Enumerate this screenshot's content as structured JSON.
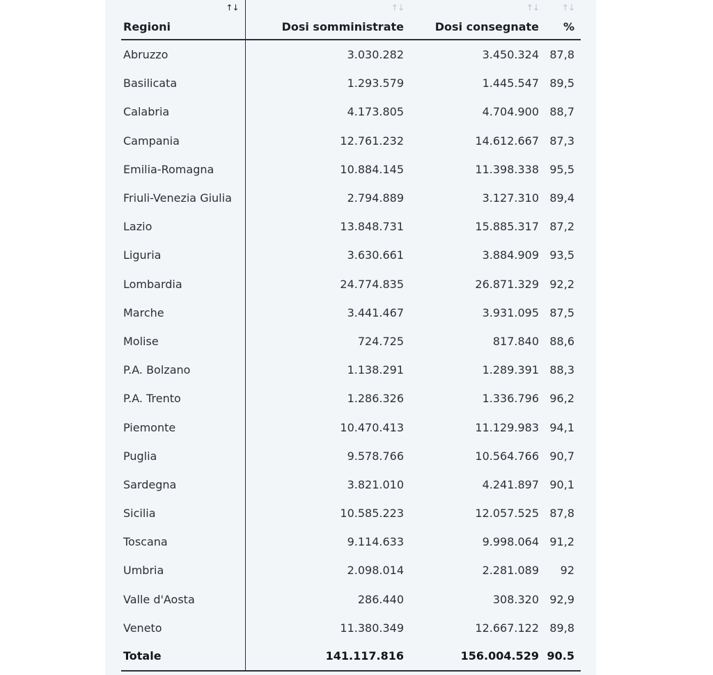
{
  "table": {
    "headers": [
      "Regioni",
      "Dosi somministrate",
      "Dosi consegnate",
      "%"
    ],
    "sort_glyph": "↑↓",
    "rows": [
      [
        "Abruzzo",
        "3.030.282",
        "3.450.324",
        "87,8"
      ],
      [
        "Basilicata",
        "1.293.579",
        "1.445.547",
        "89,5"
      ],
      [
        "Calabria",
        "4.173.805",
        "4.704.900",
        "88,7"
      ],
      [
        "Campania",
        "12.761.232",
        "14.612.667",
        "87,3"
      ],
      [
        "Emilia-Romagna",
        "10.884.145",
        "11.398.338",
        "95,5"
      ],
      [
        "Friuli-Venezia Giulia",
        "2.794.889",
        "3.127.310",
        "89,4"
      ],
      [
        "Lazio",
        "13.848.731",
        "15.885.317",
        "87,2"
      ],
      [
        "Liguria",
        "3.630.661",
        "3.884.909",
        "93,5"
      ],
      [
        "Lombardia",
        "24.774.835",
        "26.871.329",
        "92,2"
      ],
      [
        "Marche",
        "3.441.467",
        "3.931.095",
        "87,5"
      ],
      [
        "Molise",
        "724.725",
        "817.840",
        "88,6"
      ],
      [
        "P.A. Bolzano",
        "1.138.291",
        "1.289.391",
        "88,3"
      ],
      [
        "P.A. Trento",
        "1.286.326",
        "1.336.796",
        "96,2"
      ],
      [
        "Piemonte",
        "10.470.413",
        "11.129.983",
        "94,1"
      ],
      [
        "Puglia",
        "9.578.766",
        "10.564.766",
        "90,7"
      ],
      [
        "Sardegna",
        "3.821.010",
        "4.241.897",
        "90,1"
      ],
      [
        "Sicilia",
        "10.585.223",
        "12.057.525",
        "87,8"
      ],
      [
        "Toscana",
        "9.114.633",
        "9.998.064",
        "91,2"
      ],
      [
        "Umbria",
        "2.098.014",
        "2.281.089",
        "92"
      ],
      [
        "Valle d'Aosta",
        "286.440",
        "308.320",
        "92,9"
      ],
      [
        "Veneto",
        "11.380.349",
        "12.667.122",
        "89,8"
      ]
    ],
    "total": [
      "Totale",
      "141.117.816",
      "156.004.529",
      "90.5"
    ]
  }
}
